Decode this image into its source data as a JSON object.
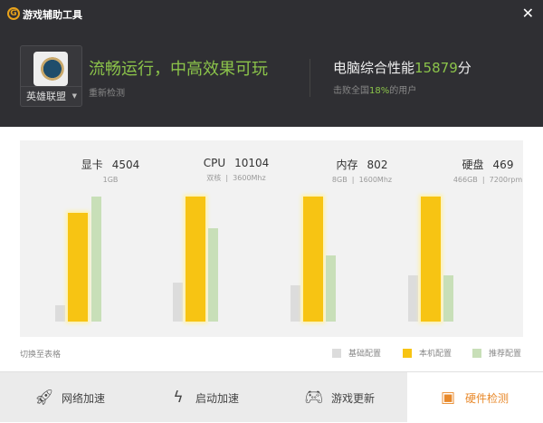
{
  "window": {
    "title": "游戏辅助工具",
    "close": "✕"
  },
  "header": {
    "game": "英雄联盟",
    "status": "流畅运行，中高效果可玩",
    "recheck": "重新检测",
    "score_prefix": "电脑综合性能",
    "score": "15879",
    "score_suffix": "分",
    "beat_prefix": "击败全国",
    "beat_pct": "18%",
    "beat_suffix": "的用户"
  },
  "chart_data": {
    "type": "bar",
    "note_units": "relative bar height, percent of tallest bar",
    "categories": [
      "显卡",
      "CPU",
      "内存",
      "硬盘"
    ],
    "series": [
      {
        "name": "基础配置",
        "color": "#dcdcdc",
        "values": [
          13,
          31,
          29,
          37
        ]
      },
      {
        "name": "本机配置",
        "color": "#f7c413",
        "values": [
          87,
          100,
          100,
          100
        ]
      },
      {
        "name": "推荐配置",
        "color": "#c8dfb8",
        "values": [
          100,
          75,
          53,
          37
        ]
      }
    ]
  },
  "components": [
    {
      "name": "显卡",
      "score": "4504",
      "spec": [
        "1GB"
      ]
    },
    {
      "name": "CPU",
      "score": "10104",
      "spec": [
        "双核",
        "3600Mhz"
      ]
    },
    {
      "name": "内存",
      "score": "802",
      "spec": [
        "8GB",
        "1600Mhz"
      ]
    },
    {
      "name": "硬盘",
      "score": "469",
      "spec": [
        "466GB",
        "7200rpm"
      ]
    }
  ],
  "switch_label": "切换至表格",
  "tabs": [
    {
      "label": "网络加速",
      "icon": "rocket-icon"
    },
    {
      "label": "启动加速",
      "icon": "lightning-icon"
    },
    {
      "label": "游戏更新",
      "icon": "gamepad-icon"
    },
    {
      "label": "硬件检测",
      "icon": "hardware-icon",
      "active": true
    }
  ]
}
